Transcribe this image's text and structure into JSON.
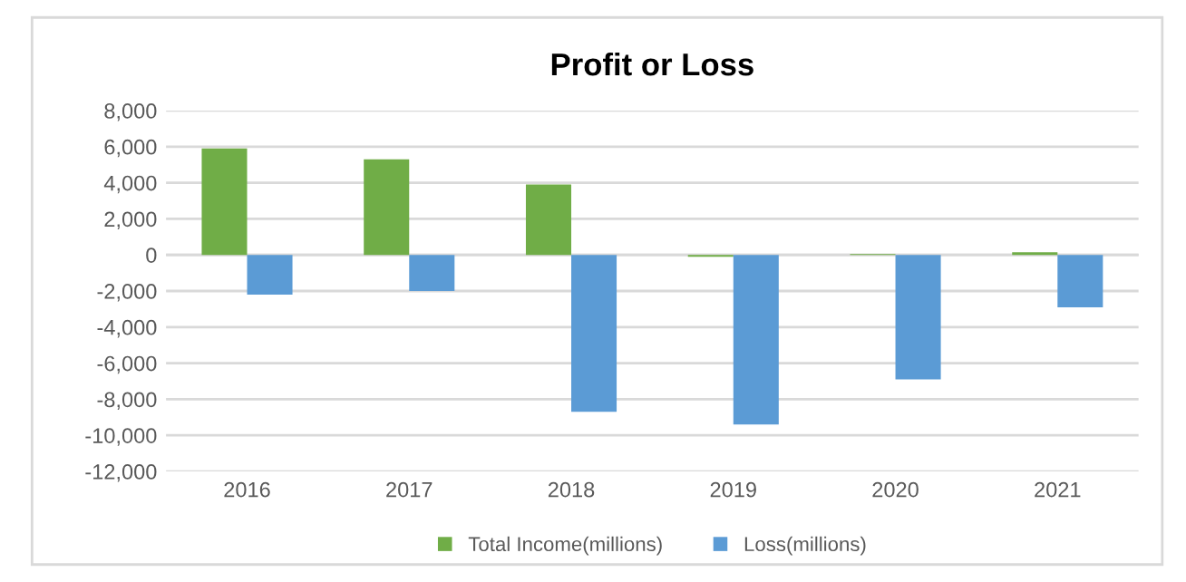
{
  "chart_data": {
    "type": "bar",
    "title": "Profit or Loss",
    "categories": [
      "2016",
      "2017",
      "2018",
      "2019",
      "2020",
      "2021"
    ],
    "series": [
      {
        "name": "Total Income(millions)",
        "color": "#70ad47",
        "values": [
          5900,
          5300,
          3900,
          -100,
          50,
          150
        ]
      },
      {
        "name": "Loss(millions)",
        "color": "#5b9bd5",
        "values": [
          -2200,
          -2000,
          -8700,
          -9400,
          -6900,
          -2900
        ]
      }
    ],
    "ylim": [
      -12000,
      8000
    ],
    "yticks": [
      {
        "value": -12000,
        "label": "-12,000"
      },
      {
        "value": -10000,
        "label": "-10,000"
      },
      {
        "value": -8000,
        "label": "-8,000"
      },
      {
        "value": -6000,
        "label": "-6,000"
      },
      {
        "value": -4000,
        "label": "-4,000"
      },
      {
        "value": -2000,
        "label": "-2,000"
      },
      0,
      {
        "value": 2000,
        "label": "2,000"
      },
      {
        "value": 4000,
        "label": "4,000"
      },
      {
        "value": 6000,
        "label": "6,000"
      },
      {
        "value": 8000,
        "label": "8,000"
      }
    ],
    "grid": "y",
    "legend": "bottom"
  }
}
